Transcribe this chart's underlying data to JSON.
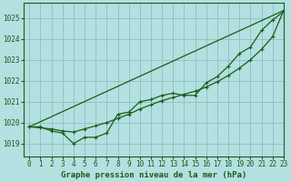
{
  "title": "Graphe pression niveau de la mer (hPa)",
  "bg_color": "#b3e0e0",
  "grid_color": "#8fbfbf",
  "line_color": "#1a5c1a",
  "xlim": [
    -0.5,
    23
  ],
  "ylim": [
    1018.4,
    1025.7
  ],
  "yticks": [
    1019,
    1020,
    1021,
    1022,
    1023,
    1024,
    1025
  ],
  "xticks": [
    0,
    1,
    2,
    3,
    4,
    5,
    6,
    7,
    8,
    9,
    10,
    11,
    12,
    13,
    14,
    15,
    16,
    17,
    18,
    19,
    20,
    21,
    22,
    23
  ],
  "series1_x": [
    0,
    1,
    2,
    3,
    4,
    5,
    6,
    7,
    8,
    9,
    10,
    11,
    12,
    13,
    14,
    15,
    16,
    17,
    18,
    19,
    20,
    21,
    22,
    23
  ],
  "series1_y": [
    1019.8,
    1019.8,
    1019.6,
    1019.5,
    1019.0,
    1019.3,
    1019.3,
    1019.5,
    1020.4,
    1020.5,
    1021.0,
    1021.1,
    1021.3,
    1021.4,
    1021.3,
    1021.3,
    1021.9,
    1022.2,
    1022.7,
    1023.3,
    1023.6,
    1024.4,
    1024.9,
    1025.3
  ],
  "series2_x": [
    0,
    23
  ],
  "series2_y": [
    1019.8,
    1025.35
  ],
  "series3_x": [
    0,
    1,
    2,
    3,
    4,
    5,
    6,
    7,
    8,
    9,
    10,
    11,
    12,
    13,
    14,
    15,
    16,
    17,
    18,
    19,
    20,
    21,
    22,
    23
  ],
  "series3_y": [
    1019.8,
    1019.75,
    1019.7,
    1019.6,
    1019.55,
    1019.7,
    1019.85,
    1020.0,
    1020.2,
    1020.4,
    1020.65,
    1020.85,
    1021.05,
    1021.2,
    1021.35,
    1021.5,
    1021.7,
    1021.95,
    1022.25,
    1022.6,
    1023.0,
    1023.5,
    1024.1,
    1025.35
  ],
  "xlabel_fontsize": 6.5,
  "tick_fontsize": 5.5
}
